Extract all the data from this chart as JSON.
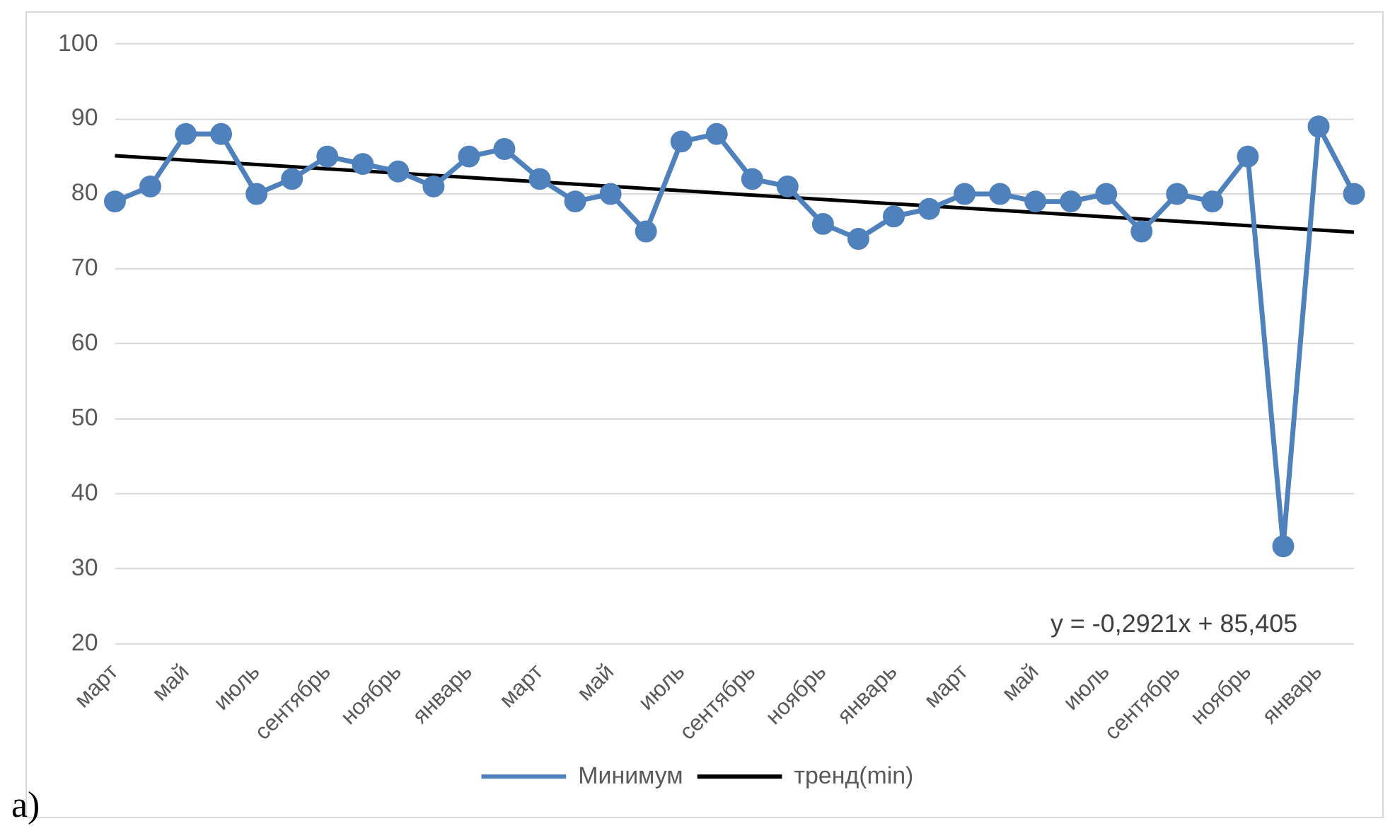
{
  "chart_data": {
    "type": "line",
    "categories": [
      "март",
      null,
      "май",
      null,
      "июль",
      null,
      "сентябрь",
      null,
      "ноябрь",
      null,
      "январь",
      null,
      "март",
      null,
      "май",
      null,
      "июль",
      null,
      "сентябрь",
      null,
      "ноябрь",
      null,
      "январь",
      null,
      "март",
      null,
      "май",
      null,
      "июль",
      null,
      "сентябрь",
      null,
      "ноябрь",
      null,
      "январь",
      null
    ],
    "series": [
      {
        "name": "Минимум",
        "color": "#4f81bd",
        "marker": "circle",
        "values": [
          79,
          81,
          88,
          88,
          80,
          82,
          85,
          84,
          83,
          81,
          85,
          86,
          82,
          79,
          80,
          75,
          87,
          88,
          82,
          81,
          76,
          74,
          77,
          78,
          80,
          80,
          79,
          79,
          80,
          75,
          80,
          79,
          85,
          33,
          89,
          80
        ]
      },
      {
        "name": "тренд(min)",
        "color": "#000000",
        "marker": "none",
        "values": [
          85.1,
          null,
          null,
          null,
          null,
          null,
          null,
          null,
          null,
          null,
          null,
          null,
          null,
          null,
          null,
          null,
          null,
          null,
          null,
          null,
          null,
          null,
          null,
          null,
          null,
          null,
          null,
          null,
          null,
          null,
          null,
          null,
          null,
          null,
          null,
          74.9
        ]
      }
    ],
    "ylim": [
      20,
      100
    ],
    "yticks": [
      20,
      30,
      40,
      50,
      60,
      70,
      80,
      90,
      100
    ],
    "grid": "y",
    "legend": "bottom",
    "annotations": [
      "y = -0,2921x + 85,405",
      "a)"
    ]
  }
}
